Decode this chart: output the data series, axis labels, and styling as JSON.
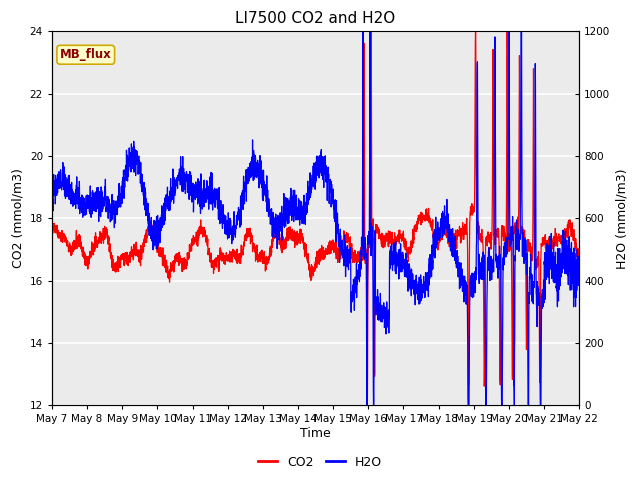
{
  "title": "LI7500 CO2 and H2O",
  "xlabel": "Time",
  "ylabel_left": "CO2 (mmol/m3)",
  "ylabel_right": "H2O (mmol/m3)",
  "ylim_left": [
    12,
    24
  ],
  "ylim_right": [
    0,
    1200
  ],
  "yticks_left": [
    12,
    14,
    16,
    18,
    20,
    22,
    24
  ],
  "yticks_right": [
    0,
    200,
    400,
    600,
    800,
    1000,
    1200
  ],
  "xtick_labels": [
    "May 7",
    "May 8",
    "May 9",
    "May 10",
    "May 11",
    "May 12",
    "May 13",
    "May 14",
    "May 15",
    "May 16",
    "May 17",
    "May 18",
    "May 19",
    "May 20",
    "May 21",
    "May 22"
  ],
  "plot_bg_color": "#ebebeb",
  "grid_color": "white",
  "co2_color": "red",
  "h2o_color": "blue",
  "annotation_text": "MB_flux",
  "annotation_bg": "#ffffcc",
  "annotation_border": "#ccaa00",
  "fig_width": 6.4,
  "fig_height": 4.8,
  "dpi": 100
}
